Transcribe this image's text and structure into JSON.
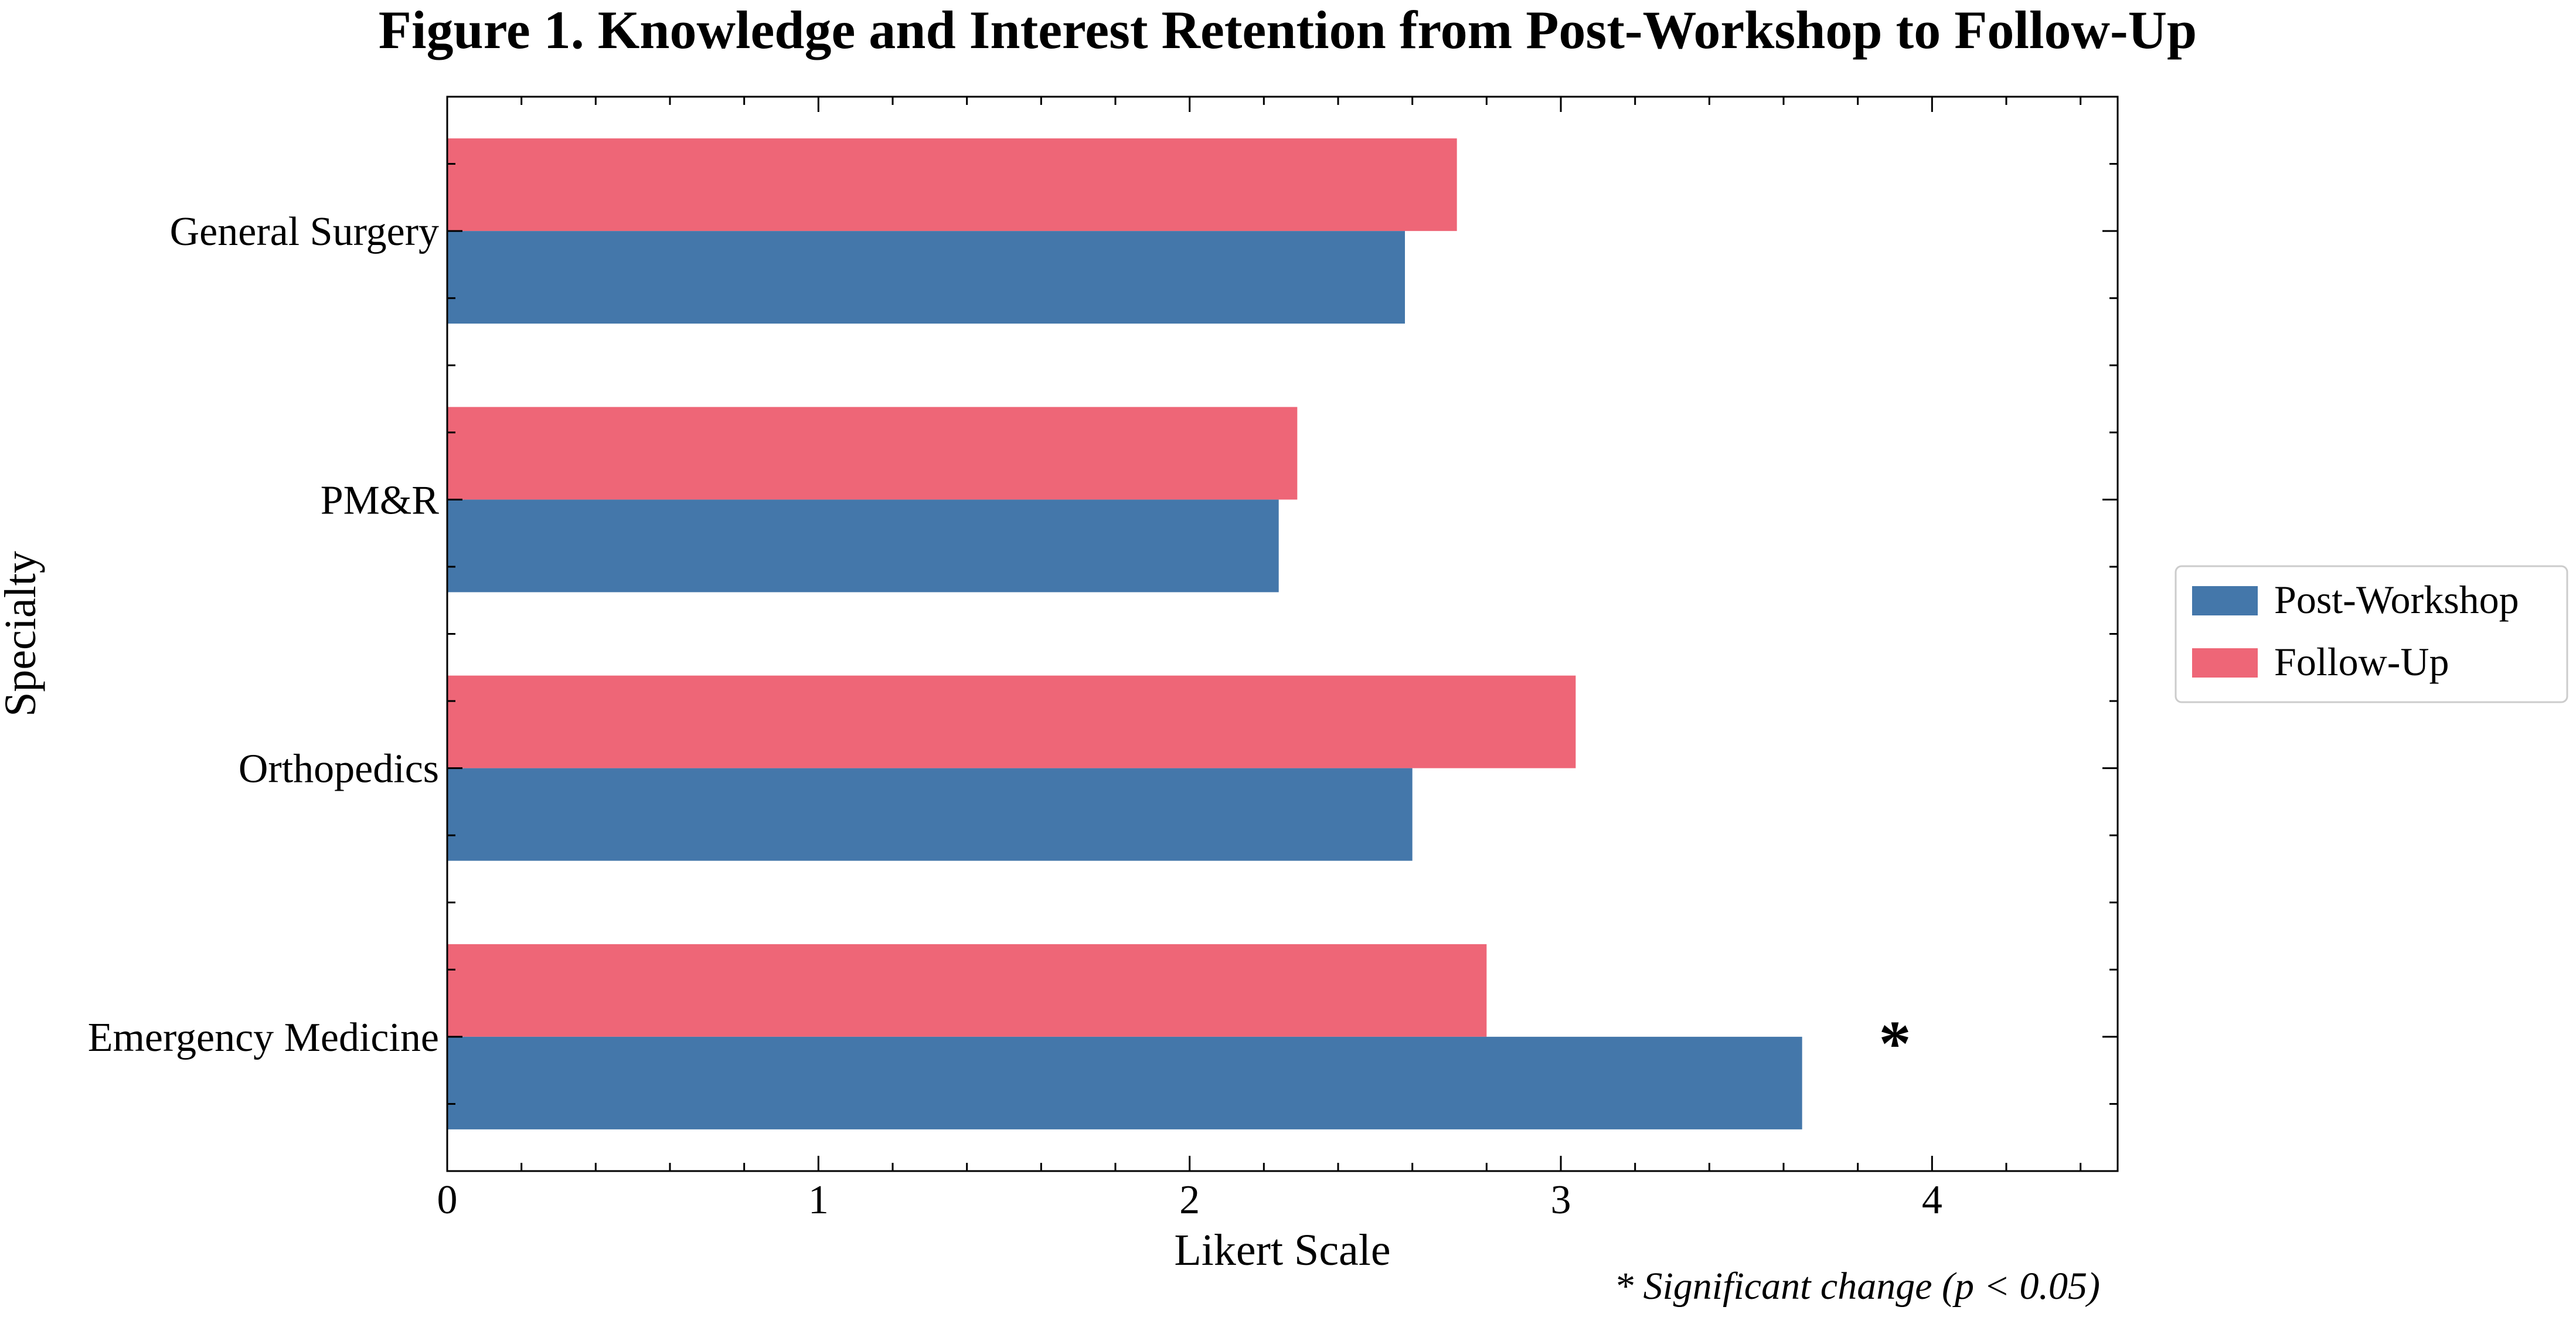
{
  "chart_data": {
    "type": "bar",
    "orientation": "horizontal",
    "title": "Figure 1. Knowledge and Interest Retention from Post-Workshop to Follow-Up",
    "xlabel": "Likert Scale",
    "ylabel": "Specialty",
    "xlim": [
      0,
      4.5
    ],
    "xticks": [
      "0",
      "1",
      "2",
      "3",
      "4"
    ],
    "grid": false,
    "legend_position": "outside-right",
    "categories": [
      "General Surgery",
      "PM&R",
      "Orthopedics",
      "Emergency Medicine"
    ],
    "series": [
      {
        "name": "Post-Workshop",
        "color": "#4477aa",
        "values": [
          2.58,
          2.24,
          2.6,
          3.65
        ]
      },
      {
        "name": "Follow-Up",
        "color": "#ee6677",
        "values": [
          2.72,
          2.29,
          3.04,
          2.8
        ]
      }
    ],
    "annotations": [
      {
        "text": "*",
        "category": "Emergency Medicine",
        "x": 3.9
      }
    ],
    "footnote": "* Significant change (p < 0.05)"
  }
}
